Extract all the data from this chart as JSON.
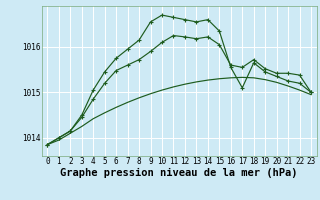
{
  "title": "Graphe pression niveau de la mer (hPa)",
  "bg_color": "#ceeaf5",
  "grid_color": "#b0d8e8",
  "line_color": "#1e5c1e",
  "x_labels": [
    "0",
    "1",
    "2",
    "3",
    "4",
    "5",
    "6",
    "7",
    "8",
    "9",
    "10",
    "11",
    "12",
    "13",
    "14",
    "15",
    "16",
    "17",
    "18",
    "19",
    "20",
    "21",
    "22",
    "23"
  ],
  "series1_smooth": [
    1013.85,
    1013.95,
    1014.1,
    1014.25,
    1014.42,
    1014.55,
    1014.67,
    1014.78,
    1014.88,
    1014.97,
    1015.05,
    1015.12,
    1015.18,
    1015.23,
    1015.27,
    1015.3,
    1015.32,
    1015.33,
    1015.32,
    1015.28,
    1015.22,
    1015.14,
    1015.05,
    1014.95
  ],
  "series2_mid": [
    1013.85,
    1014.0,
    1014.15,
    1014.45,
    1014.85,
    1015.2,
    1015.48,
    1015.6,
    1015.72,
    1015.9,
    1016.1,
    1016.25,
    1016.22,
    1016.18,
    1016.22,
    1016.05,
    1015.6,
    1015.55,
    1015.72,
    1015.52,
    1015.42,
    1015.42,
    1015.38,
    1015.0
  ],
  "series3_top": [
    1013.85,
    1014.0,
    1014.15,
    1014.5,
    1015.05,
    1015.45,
    1015.75,
    1015.95,
    1016.15,
    1016.55,
    1016.7,
    1016.65,
    1016.6,
    1016.55,
    1016.6,
    1016.35,
    1015.55,
    1015.1,
    1015.65,
    1015.45,
    1015.35,
    1015.25,
    1015.2,
    1015.0
  ],
  "ylim": [
    1013.6,
    1016.9
  ],
  "yticks": [
    1014,
    1015,
    1016
  ],
  "title_fontsize": 7.5,
  "tick_fontsize": 5.5
}
